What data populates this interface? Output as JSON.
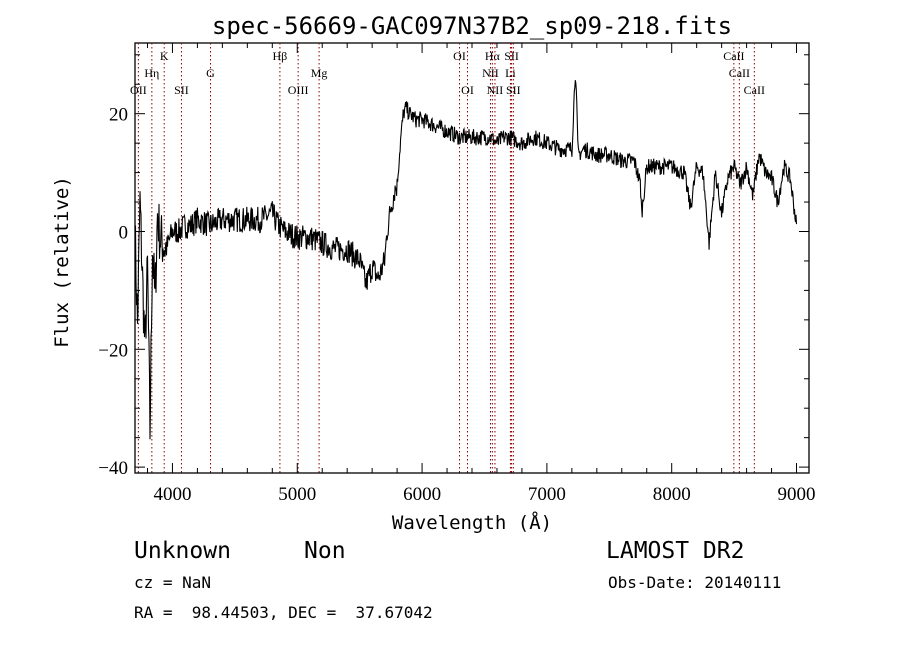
{
  "chart_data": {
    "type": "line",
    "title": "spec-56669-GAC097N37B2_sp09-218.fits",
    "xlabel": "Wavelength (Å)",
    "ylabel": "Flux (relative)",
    "xlim": [
      3700,
      9100
    ],
    "ylim": [
      -41,
      32
    ],
    "xticks": [
      4000,
      5000,
      6000,
      7000,
      8000,
      9000
    ],
    "xtick_labels": [
      "4000",
      "5000",
      "6000",
      "7000",
      "8000",
      "9000"
    ],
    "yticks": [
      20,
      0,
      -20,
      -40
    ],
    "ytick_labels": [
      "20",
      "0",
      "−20",
      "−40"
    ],
    "grid": false,
    "line_color": "#000000",
    "marker_color": "#8b0000",
    "series": [
      {
        "x": [
          3700,
          3720,
          3740,
          3760,
          3780,
          3800,
          3820,
          3840,
          3860,
          3880,
          3900,
          3950,
          4000,
          4050,
          4100,
          4150,
          4200,
          4300,
          4400,
          4500,
          4600,
          4700,
          4800,
          4850,
          4900,
          5000,
          5100,
          5200,
          5300,
          5400,
          5500,
          5550,
          5600,
          5650,
          5700,
          5720,
          5750,
          5780,
          5800,
          5830,
          5850,
          5870,
          5900,
          5950,
          6000,
          6100,
          6200,
          6300,
          6400,
          6500,
          6550,
          6600,
          6650,
          6700,
          6800,
          6900,
          7000,
          7100,
          7200,
          7230,
          7250,
          7300,
          7400,
          7500,
          7600,
          7700,
          7750,
          7760,
          7800,
          7900,
          8000,
          8100,
          8150,
          8200,
          8250,
          8300,
          8350,
          8400,
          8450,
          8500,
          8550,
          8600,
          8650,
          8700,
          8750,
          8800,
          8850,
          8900,
          8950,
          9000
        ],
        "y": [
          0,
          -16,
          5,
          -8,
          -20,
          -6,
          -34,
          -2,
          -12,
          3,
          -1,
          -3,
          0,
          0,
          1,
          1,
          2,
          1,
          2,
          2,
          2,
          2,
          3,
          1,
          0,
          -1,
          -1,
          -2,
          -3,
          -3,
          -5,
          -9,
          -6,
          -8,
          -5,
          0,
          4,
          7,
          8,
          16,
          20,
          21,
          20,
          19,
          19,
          18,
          17,
          16,
          16,
          16,
          16,
          15,
          16,
          16,
          15,
          16,
          15,
          14,
          14,
          28,
          13,
          14,
          13,
          13,
          12,
          12,
          8,
          3,
          11,
          11,
          11,
          10,
          4,
          11,
          10,
          -2,
          10,
          3,
          9,
          11,
          8,
          11,
          6,
          13,
          10,
          9,
          5,
          11,
          9,
          1
        ]
      }
    ],
    "line_markers": [
      {
        "label": "OII",
        "x": 3727,
        "row": 3
      },
      {
        "label": "Hη",
        "x": 3835,
        "row": 2
      },
      {
        "label": "K",
        "x": 3934,
        "row": 1
      },
      {
        "label": "SII",
        "x": 4072,
        "row": 3
      },
      {
        "label": "G",
        "x": 4305,
        "row": 2
      },
      {
        "label": "Hβ",
        "x": 4861,
        "row": 1
      },
      {
        "label": "OIII",
        "x": 5007,
        "row": 3
      },
      {
        "label": "Mg",
        "x": 5175,
        "row": 2
      },
      {
        "label": "OI",
        "x": 6300,
        "row": 1
      },
      {
        "label": "OI",
        "x": 6364,
        "row": 3
      },
      {
        "label": "Hα",
        "x": 6563,
        "row": 1
      },
      {
        "label": "NII",
        "x": 6548,
        "row": 2
      },
      {
        "label": "NII",
        "x": 6584,
        "row": 3
      },
      {
        "label": "SII",
        "x": 6717,
        "row": 1
      },
      {
        "label": "Li",
        "x": 6708,
        "row": 2
      },
      {
        "label": "SII",
        "x": 6731,
        "row": 3
      },
      {
        "label": "CaII",
        "x": 8498,
        "row": 1
      },
      {
        "label": "CaII",
        "x": 8542,
        "row": 2
      },
      {
        "label": "CaII",
        "x": 8662,
        "row": 3
      }
    ]
  },
  "info": {
    "class": "Unknown",
    "subclass": "Non",
    "survey": "LAMOST DR2",
    "cz": "cz = NaN",
    "obsdate": "Obs-Date: 20140111",
    "radec": "RA =  98.44503, DEC =  37.67042"
  }
}
